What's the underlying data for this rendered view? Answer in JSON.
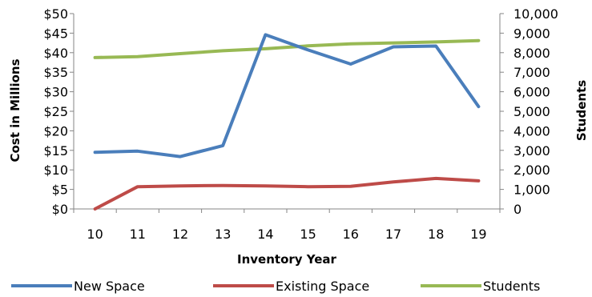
{
  "chart_data": {
    "type": "line",
    "title": "",
    "xlabel": "Inventory Year",
    "ylabel": "Cost in Millions",
    "y2label": "Students",
    "categories": [
      "10",
      "11",
      "12",
      "13",
      "14",
      "15",
      "16",
      "17",
      "18",
      "19"
    ],
    "ylim": [
      0,
      50
    ],
    "y2lim": [
      0,
      10000
    ],
    "yticks": [
      "$0",
      "$5",
      "$10",
      "$15",
      "$20",
      "$25",
      "$30",
      "$35",
      "$40",
      "$45",
      "$50"
    ],
    "y2ticks": [
      "0",
      "1,000",
      "2,000",
      "3,000",
      "4,000",
      "5,000",
      "6,000",
      "7,000",
      "8,000",
      "9,000",
      "10,000"
    ],
    "grid": false,
    "legend_position": "bottom",
    "series": [
      {
        "name": "New Space",
        "axis": "left",
        "color": "#4a7ebb",
        "values": [
          14.5,
          14.8,
          13.4,
          16.2,
          44.6,
          40.7,
          37.1,
          41.5,
          41.7,
          26.2
        ]
      },
      {
        "name": "Existing Space",
        "axis": "left",
        "color": "#be4b48",
        "values": [
          0,
          5.7,
          5.9,
          6.0,
          5.9,
          5.7,
          5.8,
          6.9,
          7.8,
          7.2
        ]
      },
      {
        "name": "Students",
        "axis": "right",
        "color": "#98b954",
        "values": [
          7750,
          7800,
          7950,
          8100,
          8200,
          8350,
          8450,
          8500,
          8550,
          8620
        ]
      }
    ]
  }
}
